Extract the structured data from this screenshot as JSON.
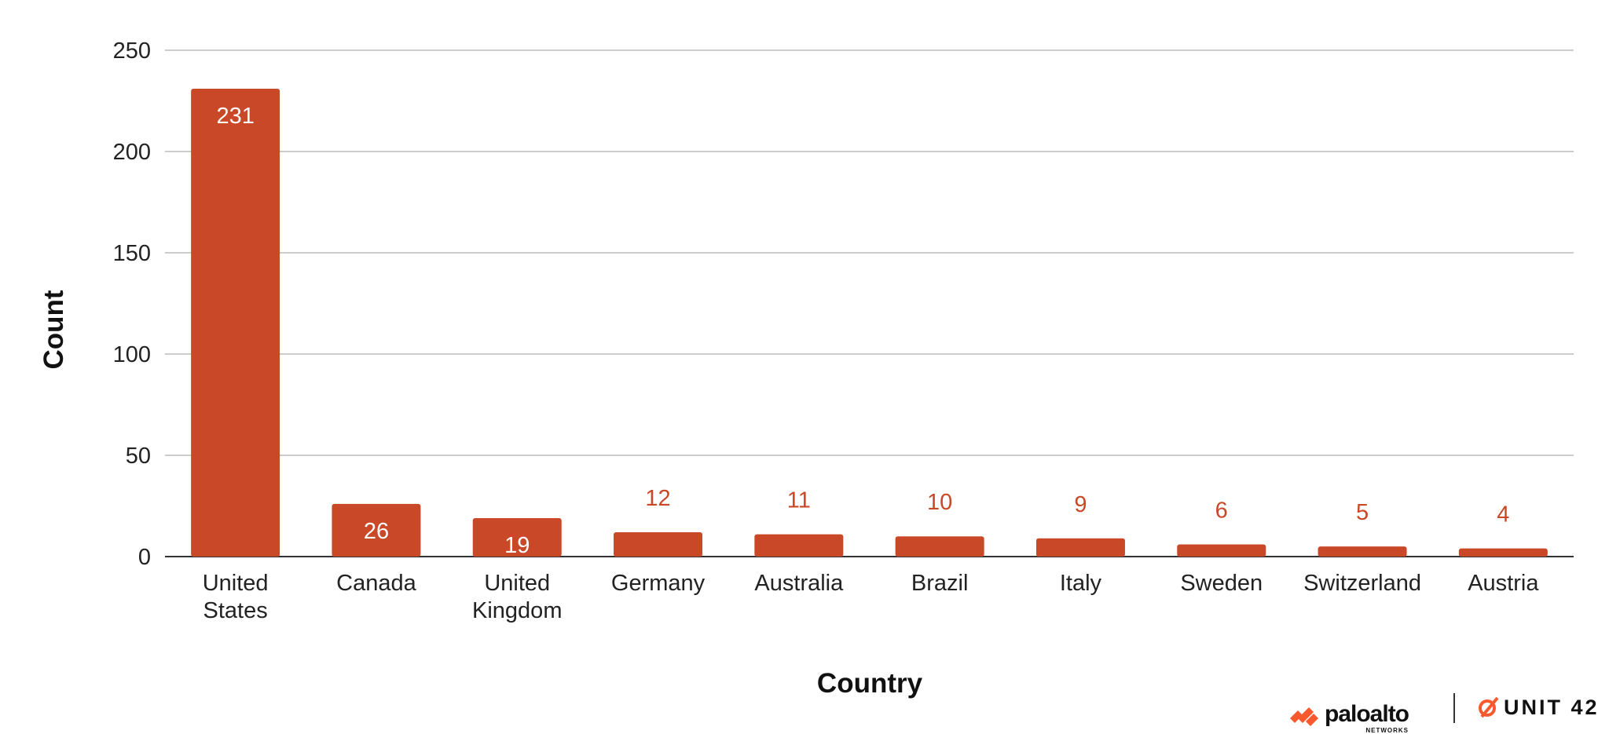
{
  "chart_data": {
    "type": "bar",
    "categories": [
      "United States",
      "Canada",
      "United Kingdom",
      "Germany",
      "Australia",
      "Brazil",
      "Italy",
      "Sweden",
      "Switzerland",
      "Austria"
    ],
    "values": [
      231,
      26,
      19,
      12,
      11,
      10,
      9,
      6,
      5,
      4
    ],
    "xlabel": "Country",
    "ylabel": "Count",
    "ylim": [
      0,
      250
    ],
    "yticks": [
      0,
      50,
      100,
      150,
      200,
      250
    ],
    "grid": true,
    "colors": {
      "bar": "#C84827",
      "label_inside": "#ffffff",
      "label_outside": "#C84827",
      "grid": "#CCCCCC",
      "axis": "#333333"
    }
  },
  "branding": {
    "paloalto": "paloalto",
    "paloalto_sub": "NETWORKS",
    "unit42": "UNIT 42",
    "brand_color": "#FA582D"
  }
}
